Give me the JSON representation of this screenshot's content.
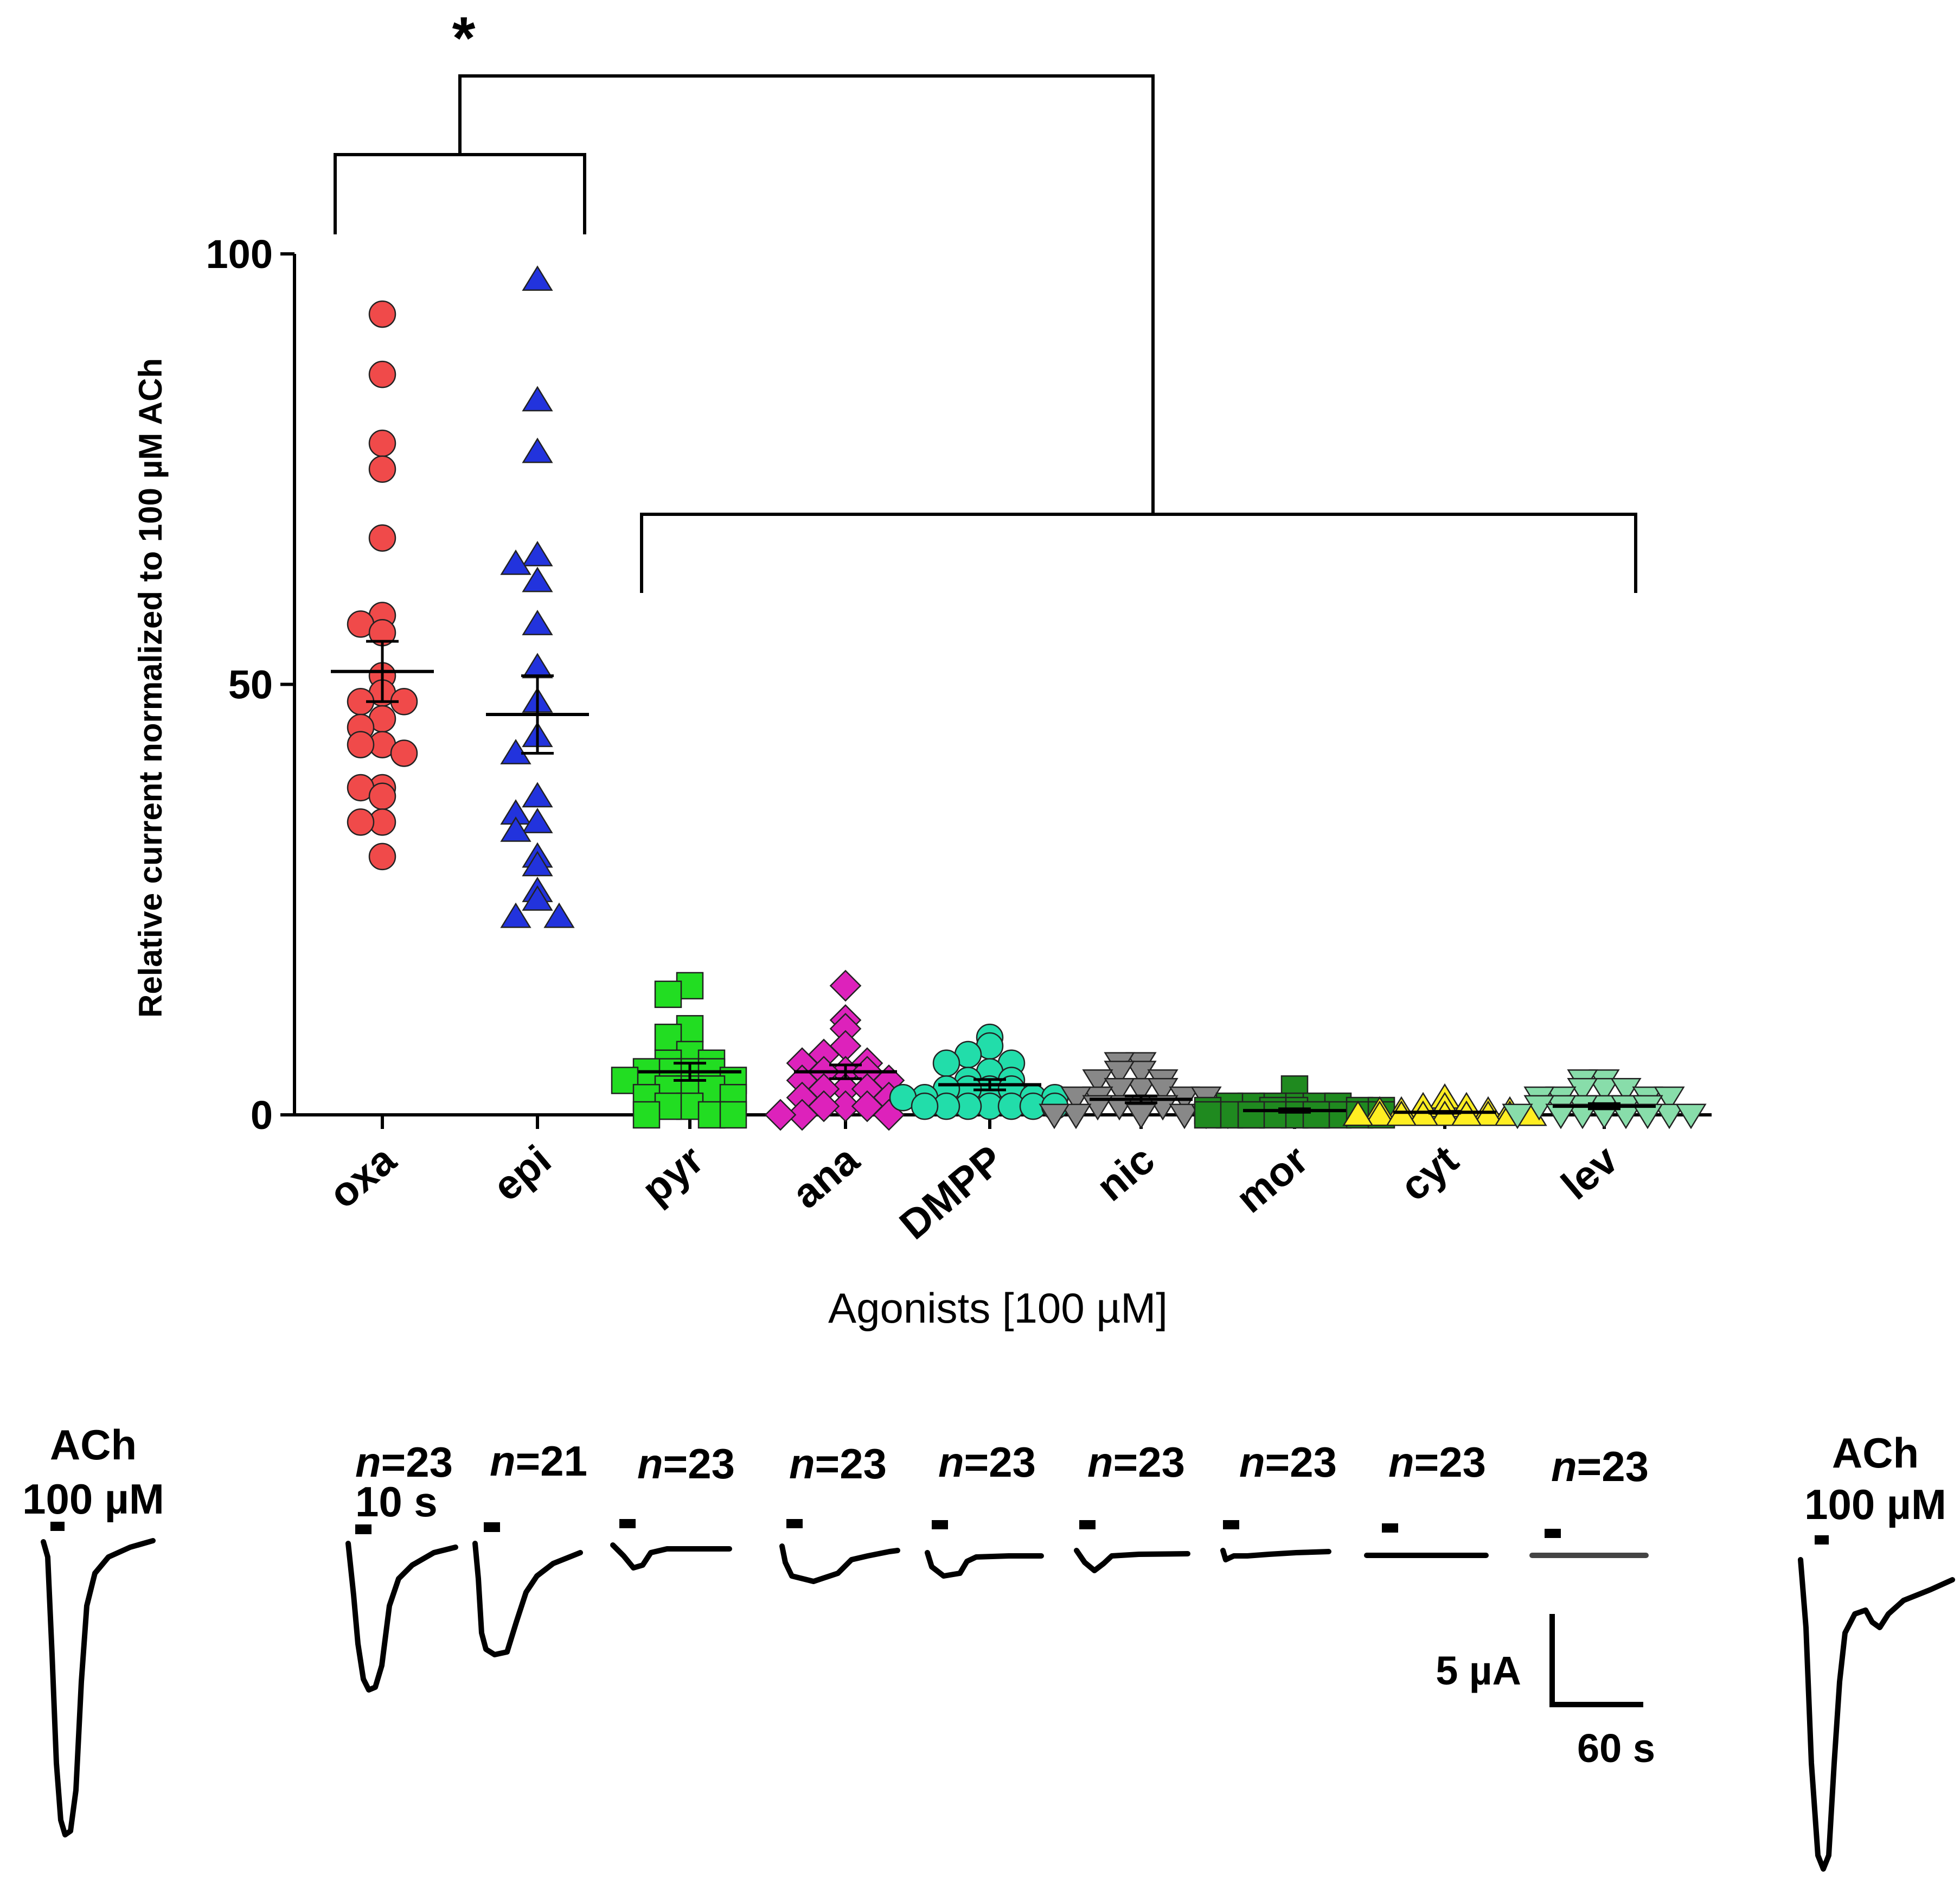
{
  "chart_data": {
    "type": "scatter",
    "title": "",
    "ylabel": "Relative current normalized to 100 µM ACh",
    "xlabel": "Agonists [100 µM]",
    "ylim": [
      0,
      100
    ],
    "yticks": [
      0,
      50,
      100
    ],
    "categories": [
      "oxa",
      "epi",
      "pyr",
      "ana",
      "DMPP",
      "nic",
      "mor",
      "cyt",
      "lev"
    ],
    "significance": {
      "label": "*",
      "group_a": [
        "oxa",
        "epi"
      ],
      "group_b": [
        "pyr",
        "ana",
        "DMPP",
        "nic",
        "mor",
        "cyt",
        "lev"
      ]
    },
    "series": [
      {
        "name": "oxa",
        "color": "#f04a4a",
        "marker": "circle",
        "mean": 51.5,
        "sem": 3.5,
        "values": [
          93,
          86,
          78,
          75,
          67,
          58,
          57,
          56,
          51,
          49,
          48,
          48,
          46,
          45,
          43,
          43,
          42,
          38,
          38,
          37,
          34,
          34,
          30
        ]
      },
      {
        "name": "epi",
        "color": "#2233dd",
        "marker": "triangle-up",
        "mean": 46.5,
        "sem": 4.5,
        "values": [
          97,
          83,
          77,
          65,
          64,
          62,
          57,
          52,
          48,
          44,
          42,
          37,
          35,
          34,
          33,
          30,
          29,
          26,
          25,
          23,
          23
        ]
      },
      {
        "name": "pyr",
        "color": "#22dd22",
        "marker": "square",
        "mean": 5.0,
        "sem": 1.0,
        "values": [
          15,
          14,
          10,
          9,
          7,
          6,
          6,
          5,
          5,
          5,
          5,
          4,
          4,
          3,
          3,
          3,
          2,
          2,
          1,
          1,
          0,
          0,
          0
        ]
      },
      {
        "name": "ana",
        "color": "#dd22bb",
        "marker": "diamond",
        "mean": 5.0,
        "sem": 0.8,
        "values": [
          15,
          11,
          10,
          8,
          7,
          6,
          6,
          5,
          5,
          5,
          4,
          4,
          3,
          3,
          3,
          2,
          2,
          1,
          1,
          1,
          0,
          0,
          0
        ]
      },
      {
        "name": "DMPP",
        "color": "#22ddaa",
        "marker": "circle",
        "mean": 3.5,
        "sem": 0.6,
        "values": [
          9,
          8,
          7,
          6,
          6,
          5,
          4,
          4,
          3,
          3,
          3,
          3,
          2,
          2,
          2,
          2,
          1,
          1,
          1,
          1,
          1,
          1,
          1
        ]
      },
      {
        "name": "nic",
        "color": "#888888",
        "marker": "triangle-down",
        "mean": 1.8,
        "sem": 0.4,
        "values": [
          6,
          6,
          5,
          5,
          4,
          4,
          3,
          3,
          3,
          2,
          2,
          2,
          2,
          1,
          1,
          1,
          1,
          0,
          0,
          0,
          0,
          0,
          0
        ]
      },
      {
        "name": "mor",
        "color": "#1f8a1f",
        "marker": "square",
        "mean": 0.5,
        "sem": 0.2,
        "values": [
          3,
          1,
          1,
          1,
          1,
          1,
          1,
          0.5,
          0.5,
          0.5,
          0.5,
          0.5,
          0,
          0,
          0,
          0,
          0,
          0,
          0,
          0,
          0,
          0,
          0
        ]
      },
      {
        "name": "cyt",
        "color": "#ffee22",
        "marker": "triangle-up",
        "mean": 0.3,
        "sem": 0.1,
        "values": [
          2,
          1,
          1,
          1,
          0.5,
          0.5,
          0.5,
          0.5,
          0,
          0,
          0,
          0,
          0,
          0,
          0,
          0,
          0,
          0,
          0,
          0,
          0,
          0,
          0
        ]
      },
      {
        "name": "lev",
        "color": "#88ddaa",
        "marker": "triangle-down",
        "mean": 1.0,
        "sem": 0.3,
        "values": [
          4,
          4,
          3,
          3,
          3,
          2,
          2,
          2,
          2,
          1,
          1,
          1,
          1,
          1,
          1,
          0,
          0,
          0,
          0,
          0,
          0,
          0,
          0
        ]
      }
    ]
  },
  "traces": {
    "ach_left": {
      "line1": "ACh",
      "line2": "100 µM"
    },
    "ach_right": {
      "line1": "ACh",
      "line2": "100 µM"
    },
    "application_duration": "10 s",
    "n_prefix": "n",
    "n_values": [
      "=23",
      "=21",
      "=23",
      "=23",
      "=23",
      "=23",
      "=23",
      "=23",
      "=23"
    ],
    "scale_bar": {
      "current": "5 µA",
      "time": "60 s"
    }
  }
}
